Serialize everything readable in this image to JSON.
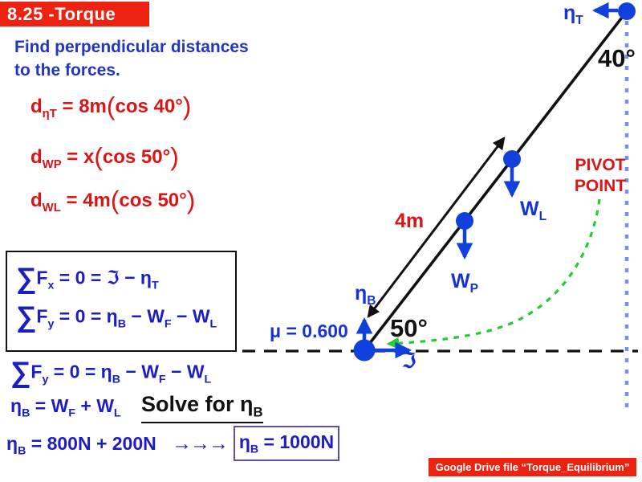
{
  "title": {
    "label": "8.25 -Torque"
  },
  "intro": {
    "line1": "Find perpendicular distances",
    "line2": "to the forces."
  },
  "distance_equations": [
    [
      [
        "t",
        "d"
      ],
      [
        "s",
        "ηT"
      ],
      [
        "t",
        " = 8m"
      ],
      [
        "p",
        "("
      ],
      [
        "t",
        "cos 40°"
      ],
      [
        "p",
        ")"
      ]
    ],
    [
      [
        "t",
        "d"
      ],
      [
        "s",
        "WP"
      ],
      [
        "t",
        " = x"
      ],
      [
        "p",
        "("
      ],
      [
        "t",
        "cos 50°"
      ],
      [
        "p",
        ")"
      ]
    ],
    [
      [
        "t",
        "d"
      ],
      [
        "s",
        "WL"
      ],
      [
        "t",
        " = 4m"
      ],
      [
        "p",
        "("
      ],
      [
        "t",
        "cos 50°"
      ],
      [
        "p",
        ")"
      ]
    ]
  ],
  "force_box": {
    "eq_fx": [
      [
        "big",
        "∑"
      ],
      [
        "t",
        "F"
      ],
      [
        "s",
        "x"
      ],
      [
        "t",
        " = 0 = ℑ − η"
      ],
      [
        "s",
        "T"
      ]
    ],
    "eq_fy": [
      [
        "big",
        "∑"
      ],
      [
        "t",
        "F"
      ],
      [
        "s",
        "y"
      ],
      [
        "t",
        " = 0 = η"
      ],
      [
        "s",
        "B"
      ],
      [
        "t",
        " − W"
      ],
      [
        "s",
        "F"
      ],
      [
        "t",
        " − W"
      ],
      [
        "s",
        "L"
      ]
    ]
  },
  "derivation": {
    "eq_fy_repeat": [
      [
        "big",
        "∑"
      ],
      [
        "t",
        "F"
      ],
      [
        "s",
        "y"
      ],
      [
        "t",
        " = 0 = η"
      ],
      [
        "s",
        "B"
      ],
      [
        "t",
        " − W"
      ],
      [
        "s",
        "F"
      ],
      [
        "t",
        " − W"
      ],
      [
        "s",
        "L"
      ]
    ],
    "eq_nb": [
      [
        "t",
        "η"
      ],
      [
        "s",
        "B"
      ],
      [
        "t",
        " = W"
      ],
      [
        "s",
        "F"
      ],
      [
        "t",
        " + W"
      ],
      [
        "s",
        "L"
      ]
    ],
    "solve_label": [
      [
        "t",
        "Solve for η"
      ],
      [
        "s",
        "B"
      ]
    ],
    "eq_final": [
      [
        "t",
        "η"
      ],
      [
        "s",
        "B"
      ],
      [
        "t",
        " = 800N + 200N"
      ]
    ],
    "arrows": "→→→",
    "result": [
      [
        "t",
        "η"
      ],
      [
        "s",
        "B"
      ],
      [
        "t",
        " = 1000N"
      ]
    ]
  },
  "diagram": {
    "eta_T": [
      [
        "t",
        "η"
      ],
      [
        "s",
        "T"
      ]
    ],
    "eta_B": [
      [
        "t",
        "η"
      ],
      [
        "s",
        "B"
      ]
    ],
    "W_L": [
      [
        "t",
        "W"
      ],
      [
        "s",
        "L"
      ]
    ],
    "W_P": [
      [
        "t",
        "W"
      ],
      [
        "s",
        "P"
      ]
    ],
    "friction": "ℑ",
    "mu": "μ = 0.600",
    "angle_top": "40°",
    "angle_bottom": "50°",
    "length": "4m",
    "pivot_line1": "PIVOT",
    "pivot_line2": "POINT"
  },
  "footer": {
    "label": "Google Drive file “Torque_Equilibrium”"
  },
  "colors": {
    "banner_red": "#ee2211",
    "text_red": "#dd1414",
    "text_blue": "#1d1dc5",
    "diagram_blue": "#1140dd",
    "wall_dash_blue": "#7b8cec",
    "pivot_green": "#22cc33",
    "result_box_purple": "#5a4fa0"
  }
}
